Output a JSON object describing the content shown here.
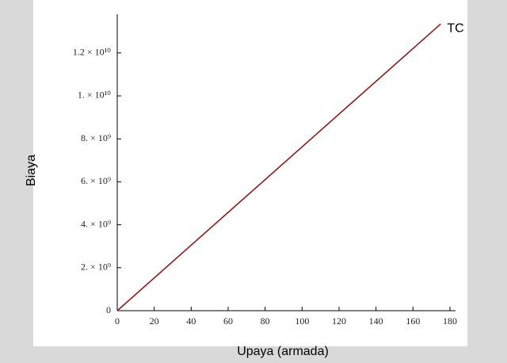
{
  "chart_data": {
    "type": "line",
    "x_label": "Upaya (armada)",
    "y_label": "Biaya",
    "x": [
      0,
      175
    ],
    "series": [
      {
        "name": "TC",
        "color": "#8b1a1a",
        "values": [
          0,
          13350000000
        ]
      }
    ],
    "xlim": [
      0,
      183
    ],
    "xticks": [
      0,
      20,
      40,
      60,
      80,
      100,
      120,
      140,
      160,
      180
    ],
    "ylim": [
      0,
      13800000000
    ],
    "yticks": [
      0,
      {
        "value": 2000000000,
        "label": "2. × 10⁹"
      },
      {
        "value": 4000000000,
        "label": "4. × 10⁹"
      },
      {
        "value": 6000000000,
        "label": "6. × 10⁹"
      },
      {
        "value": 8000000000,
        "label": "8. × 10⁹"
      },
      {
        "value": 10000000000,
        "label": "1. × 10¹⁰"
      },
      {
        "value": 12000000000,
        "label": "1.2 × 10¹⁰"
      }
    ],
    "grid": false
  }
}
